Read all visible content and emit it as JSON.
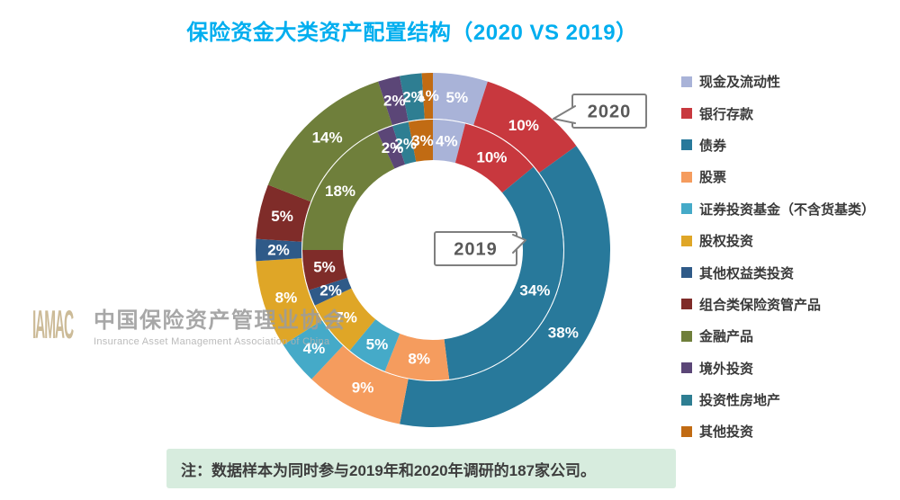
{
  "title": "保险资金大类资产配置结构（2020 VS 2019）",
  "title_color": "#00AEEF",
  "chart_data": {
    "type": "donut",
    "title": "保险资金大类资产配置结构（2020 VS 2019）",
    "unit": "%",
    "clockwise_from_top": true,
    "legend_position": "right",
    "categories": [
      "现金及流动性",
      "银行存款",
      "债券",
      "股票",
      "证券投资基金（不含货基类）",
      "股权投资",
      "其他权益类投资",
      "组合类保险资管产品",
      "金融产品",
      "境外投资",
      "投资性房地产",
      "其他投资"
    ],
    "colors": [
      "#A9B3D8",
      "#C8383E",
      "#28799B",
      "#F59C5E",
      "#45AAC8",
      "#DFA627",
      "#2F5A88",
      "#7F2C29",
      "#6F7F3B",
      "#5B4677",
      "#2E7E92",
      "#C16B13"
    ],
    "series": [
      {
        "name": "2020",
        "ring": "outer",
        "values": [
          5,
          10,
          38,
          9,
          4,
          8,
          2,
          5,
          14,
          2,
          2,
          1
        ]
      },
      {
        "name": "2019",
        "ring": "inner",
        "values": [
          4,
          10,
          34,
          8,
          5,
          7,
          2,
          5,
          18,
          2,
          2,
          3
        ]
      }
    ],
    "label_format": "{value}%",
    "label_color": "#FFFFFF"
  },
  "callouts": {
    "outer": "2020",
    "inner": "2019"
  },
  "watermark": {
    "logo": "IAMAC",
    "name_cn": "中国保险资产管理业协会",
    "name_en": "Insurance Asset Management Association of China"
  },
  "note": {
    "text": "注：数据样本为同时参与2019年和2020年调研的187家公司。",
    "bg": "#D7ECDE"
  }
}
